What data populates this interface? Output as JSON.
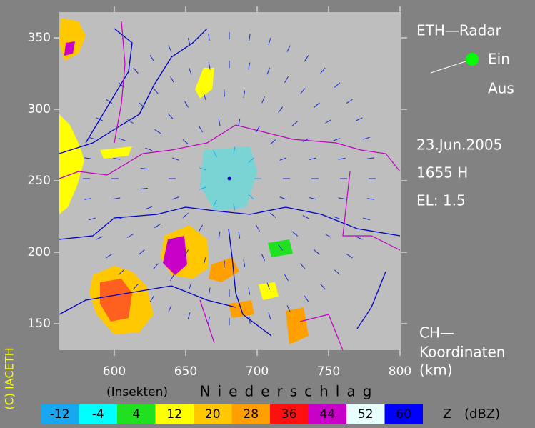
{
  "header": {
    "title": "ETH—Radar",
    "status_on": "Ein",
    "status_off": "Aus",
    "date": "23.Jun.2005",
    "time": "1655 H",
    "elevation": "EL: 1.5",
    "coords_line1": "CH—",
    "coords_line2": "Koordinaten",
    "coords_unit": "(km)",
    "copyright": "(C) IACETH"
  },
  "map": {
    "xlim": [
      561.5,
      801
    ],
    "ylim": [
      131.5,
      368
    ],
    "xticks": [
      600,
      650,
      700,
      750,
      800
    ],
    "yticks": [
      150,
      200,
      250,
      300,
      350
    ]
  },
  "legend": {
    "left_caption": "(Insekten)",
    "right_caption": "Niederschlag",
    "unit": "Z (dBZ)",
    "items": [
      {
        "label": -12,
        "color": "#18a8f0"
      },
      {
        "label": -4,
        "color": "#00ffff"
      },
      {
        "label": 4,
        "color": "#20e020"
      },
      {
        "label": 12,
        "color": "#ffff00"
      },
      {
        "label": 20,
        "color": "#ffc800"
      },
      {
        "label": 28,
        "color": "#ffa000"
      },
      {
        "label": 36,
        "color": "#ff1010"
      },
      {
        "label": 44,
        "color": "#c800c8"
      },
      {
        "label": 52,
        "color": "#e8ffff"
      },
      {
        "label": 60,
        "color": "#0000ff"
      }
    ]
  }
}
